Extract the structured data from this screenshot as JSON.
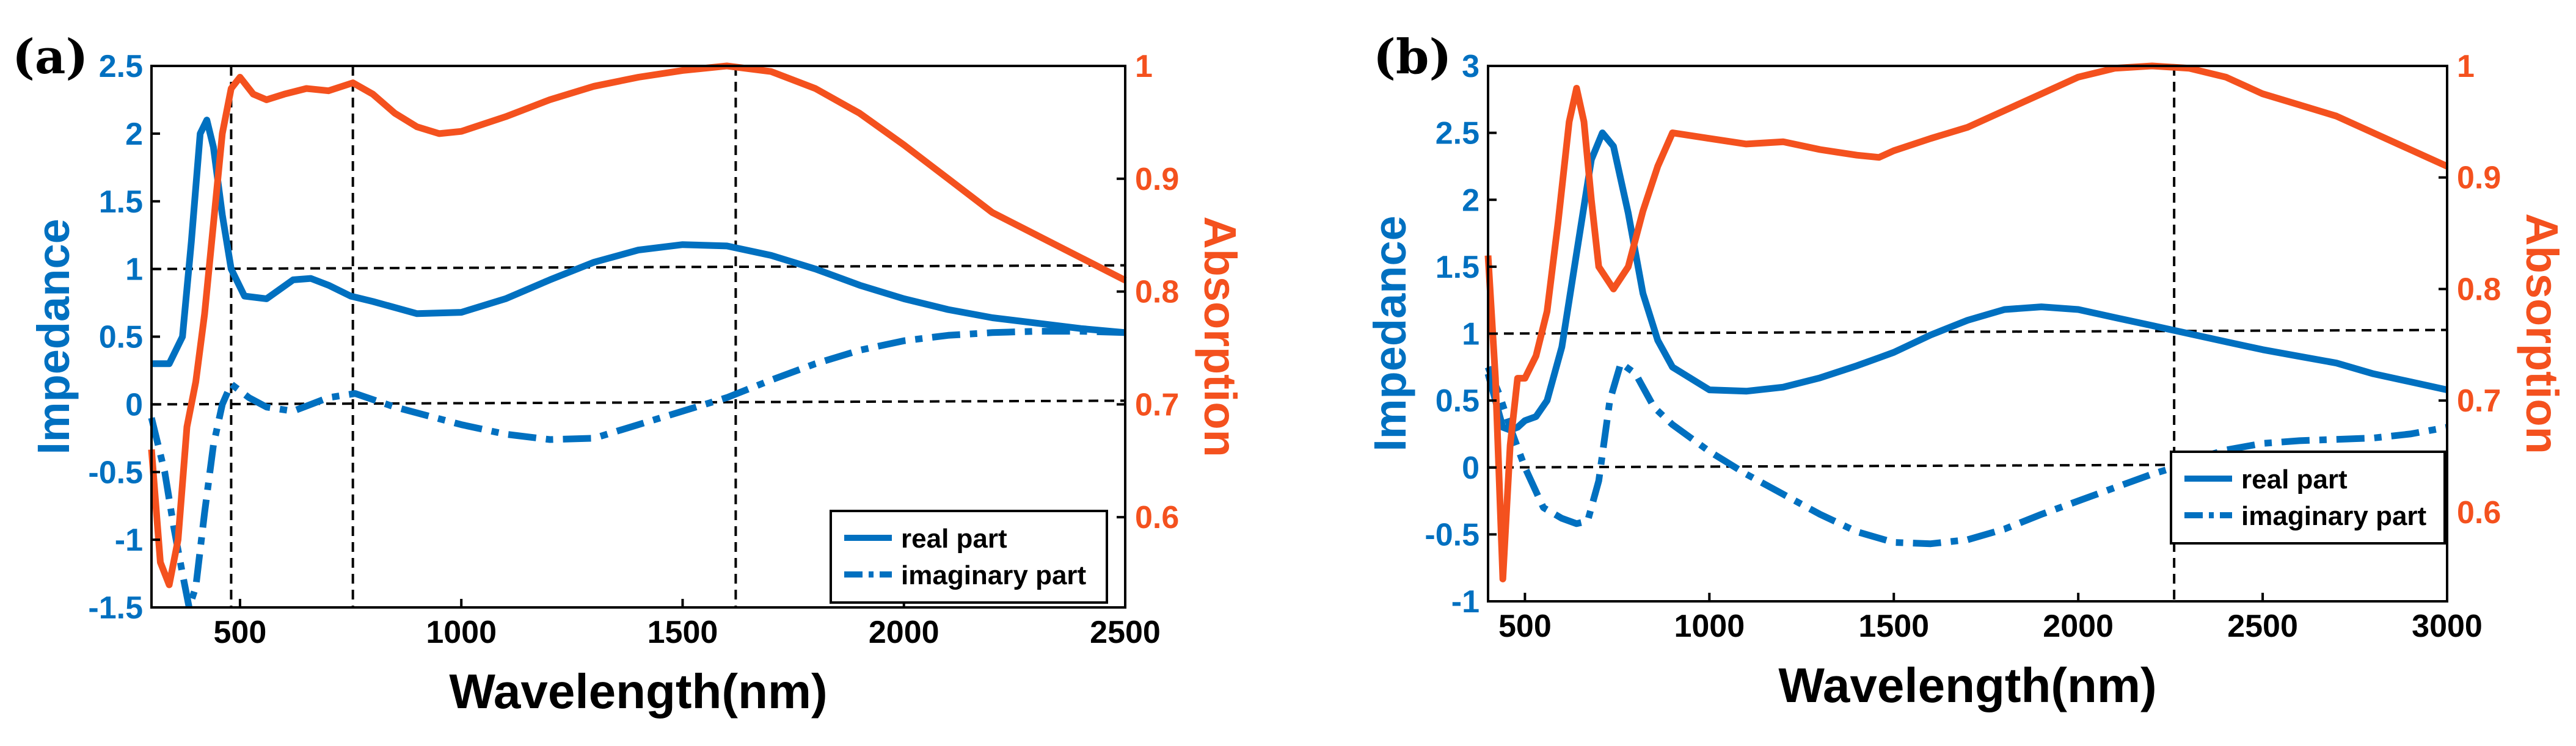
{
  "chart_data": [
    {
      "type": "line",
      "panel_label": "(a)",
      "xlabel": "Wavelength(nm)",
      "ylabel_left": "Impedance",
      "ylabel_right": "Absorption",
      "xlim": [
        300,
        2500
      ],
      "ylim_left": [
        -1.5,
        2.5
      ],
      "ylim_right": [
        0.52,
        1.0
      ],
      "xticks": [
        500,
        1000,
        1500,
        2000,
        2500
      ],
      "yticks_left": [
        -1.5,
        -1,
        -0.5,
        0,
        0.5,
        1,
        1.5,
        2,
        2.5
      ],
      "yticks_left_labels": [
        "-1.5",
        "-1",
        "-0.5",
        "0",
        "0.5",
        "1",
        "1.5",
        "2",
        "2.5"
      ],
      "yticks_right": [
        0.6,
        0.7,
        0.8,
        0.9,
        1.0
      ],
      "yticks_right_labels": [
        "0.6",
        "0.7",
        "0.8",
        "0.9",
        "1"
      ],
      "legend": {
        "position": "bottom-right",
        "entries": [
          "real part",
          "imaginary part"
        ]
      },
      "hlines_left": [
        1,
        0
      ],
      "vlines_x": [
        480,
        755,
        1620
      ],
      "series": [
        {
          "name": "real part",
          "axis": "left",
          "style": "solid",
          "color": "#0070C0",
          "x": [
            300,
            340,
            370,
            390,
            410,
            425,
            440,
            460,
            480,
            510,
            560,
            620,
            660,
            700,
            750,
            800,
            900,
            1000,
            1100,
            1200,
            1300,
            1400,
            1500,
            1600,
            1700,
            1800,
            1900,
            2000,
            2100,
            2200,
            2300,
            2400,
            2500
          ],
          "y": [
            0.3,
            0.3,
            0.5,
            1.2,
            2.0,
            2.1,
            1.9,
            1.4,
            1.0,
            0.8,
            0.78,
            0.92,
            0.93,
            0.88,
            0.8,
            0.76,
            0.67,
            0.68,
            0.78,
            0.92,
            1.05,
            1.14,
            1.18,
            1.17,
            1.1,
            1.0,
            0.88,
            0.78,
            0.7,
            0.64,
            0.6,
            0.56,
            0.53
          ]
        },
        {
          "name": "imaginary part",
          "axis": "left",
          "style": "dashdot",
          "color": "#0070C0",
          "x": [
            300,
            330,
            350,
            370,
            385,
            400,
            420,
            440,
            460,
            480,
            520,
            560,
            620,
            700,
            760,
            850,
            1000,
            1100,
            1200,
            1300,
            1400,
            1500,
            1600,
            1700,
            1800,
            1900,
            2000,
            2100,
            2200,
            2300,
            2400,
            2500
          ],
          "y": [
            -0.1,
            -0.5,
            -0.9,
            -1.25,
            -1.5,
            -1.35,
            -0.8,
            -0.3,
            0.0,
            0.15,
            0.05,
            -0.02,
            -0.05,
            0.05,
            0.08,
            -0.02,
            -0.15,
            -0.22,
            -0.26,
            -0.25,
            -0.15,
            -0.05,
            0.05,
            0.18,
            0.3,
            0.4,
            0.47,
            0.51,
            0.53,
            0.54,
            0.54,
            0.53
          ]
        },
        {
          "name": "Absorption",
          "axis": "right",
          "style": "solid",
          "color": "#F4511E",
          "x": [
            300,
            320,
            340,
            360,
            380,
            400,
            420,
            440,
            460,
            480,
            500,
            530,
            560,
            600,
            650,
            700,
            755,
            800,
            850,
            900,
            950,
            1000,
            1100,
            1200,
            1300,
            1400,
            1500,
            1600,
            1700,
            1800,
            1900,
            2000,
            2100,
            2200,
            2300,
            2400,
            2500
          ],
          "y": [
            0.66,
            0.56,
            0.54,
            0.58,
            0.68,
            0.72,
            0.78,
            0.86,
            0.94,
            0.98,
            0.99,
            0.975,
            0.97,
            0.975,
            0.98,
            0.978,
            0.985,
            0.975,
            0.958,
            0.946,
            0.94,
            0.942,
            0.955,
            0.97,
            0.982,
            0.99,
            0.996,
            1.0,
            0.995,
            0.98,
            0.958,
            0.93,
            0.9,
            0.87,
            0.85,
            0.83,
            0.81
          ]
        }
      ]
    },
    {
      "type": "line",
      "panel_label": "(b)",
      "xlabel": "Wavelength(nm)",
      "ylabel_left": "Impedance",
      "ylabel_right": "Absorption",
      "xlim": [
        400,
        3000
      ],
      "ylim_left": [
        -1,
        3
      ],
      "ylim_right": [
        0.52,
        1.0
      ],
      "xticks": [
        500,
        1000,
        1500,
        2000,
        2500,
        3000
      ],
      "yticks_left": [
        -1,
        -0.5,
        0,
        0.5,
        1,
        1.5,
        2,
        2.5,
        3
      ],
      "yticks_left_labels": [
        "-1",
        "-0.5",
        "0",
        "0.5",
        "1",
        "1.5",
        "2",
        "2.5",
        "3"
      ],
      "yticks_right": [
        0.6,
        0.7,
        0.8,
        0.9,
        1.0
      ],
      "yticks_right_labels": [
        "0.6",
        "0.7",
        "0.8",
        "0.9",
        "1"
      ],
      "legend": {
        "position": "bottom-right",
        "entries": [
          "real part",
          "imaginary part"
        ]
      },
      "hlines_left": [
        1,
        0
      ],
      "vlines_x": [
        2260
      ],
      "series": [
        {
          "name": "real part",
          "axis": "left",
          "style": "solid",
          "color": "#0070C0",
          "x": [
            400,
            420,
            440,
            460,
            480,
            500,
            530,
            560,
            600,
            640,
            680,
            710,
            740,
            780,
            820,
            860,
            900,
            1000,
            1100,
            1200,
            1300,
            1400,
            1460,
            1500,
            1600,
            1700,
            1800,
            1900,
            2000,
            2100,
            2200,
            2300,
            2400,
            2500,
            2600,
            2700,
            2800,
            2900,
            3000
          ],
          "y": [
            0.7,
            0.5,
            0.3,
            0.28,
            0.3,
            0.35,
            0.38,
            0.5,
            0.9,
            1.6,
            2.3,
            2.5,
            2.4,
            1.9,
            1.3,
            0.95,
            0.75,
            0.58,
            0.57,
            0.6,
            0.67,
            0.76,
            0.82,
            0.86,
            0.99,
            1.1,
            1.18,
            1.2,
            1.18,
            1.12,
            1.06,
            1.0,
            0.94,
            0.88,
            0.83,
            0.78,
            0.7,
            0.64,
            0.58
          ]
        },
        {
          "name": "imaginary part",
          "axis": "left",
          "style": "dashdot",
          "color": "#0070C0",
          "x": [
            400,
            430,
            460,
            500,
            550,
            600,
            640,
            670,
            700,
            730,
            760,
            800,
            850,
            900,
            1000,
            1100,
            1200,
            1300,
            1400,
            1500,
            1600,
            1700,
            1800,
            1900,
            2000,
            2100,
            2200,
            2260,
            2300,
            2400,
            2500,
            2600,
            2700,
            2800,
            2900,
            3000
          ],
          "y": [
            0.75,
            0.55,
            0.3,
            0.0,
            -0.3,
            -0.38,
            -0.42,
            -0.4,
            -0.1,
            0.5,
            0.78,
            0.7,
            0.45,
            0.32,
            0.12,
            -0.05,
            -0.2,
            -0.35,
            -0.48,
            -0.56,
            -0.57,
            -0.54,
            -0.46,
            -0.35,
            -0.25,
            -0.15,
            -0.05,
            0.0,
            0.05,
            0.13,
            0.18,
            0.2,
            0.21,
            0.22,
            0.25,
            0.3
          ]
        },
        {
          "name": "Absorption",
          "axis": "right",
          "style": "solid",
          "color": "#F4511E",
          "x": [
            400,
            420,
            440,
            460,
            480,
            500,
            530,
            560,
            590,
            620,
            640,
            660,
            680,
            700,
            740,
            780,
            820,
            860,
            900,
            1000,
            1100,
            1200,
            1300,
            1400,
            1460,
            1500,
            1600,
            1700,
            1800,
            1900,
            2000,
            2100,
            2200,
            2300,
            2400,
            2500,
            2600,
            2700,
            2800,
            2900,
            3000
          ],
          "y": [
            0.83,
            0.72,
            0.54,
            0.66,
            0.72,
            0.72,
            0.74,
            0.78,
            0.86,
            0.95,
            0.98,
            0.95,
            0.88,
            0.82,
            0.8,
            0.82,
            0.87,
            0.91,
            0.94,
            0.935,
            0.93,
            0.932,
            0.925,
            0.92,
            0.918,
            0.924,
            0.935,
            0.945,
            0.96,
            0.975,
            0.99,
            0.998,
            1.0,
            0.998,
            0.99,
            0.975,
            0.965,
            0.955,
            0.94,
            0.925,
            0.91
          ]
        }
      ]
    }
  ]
}
